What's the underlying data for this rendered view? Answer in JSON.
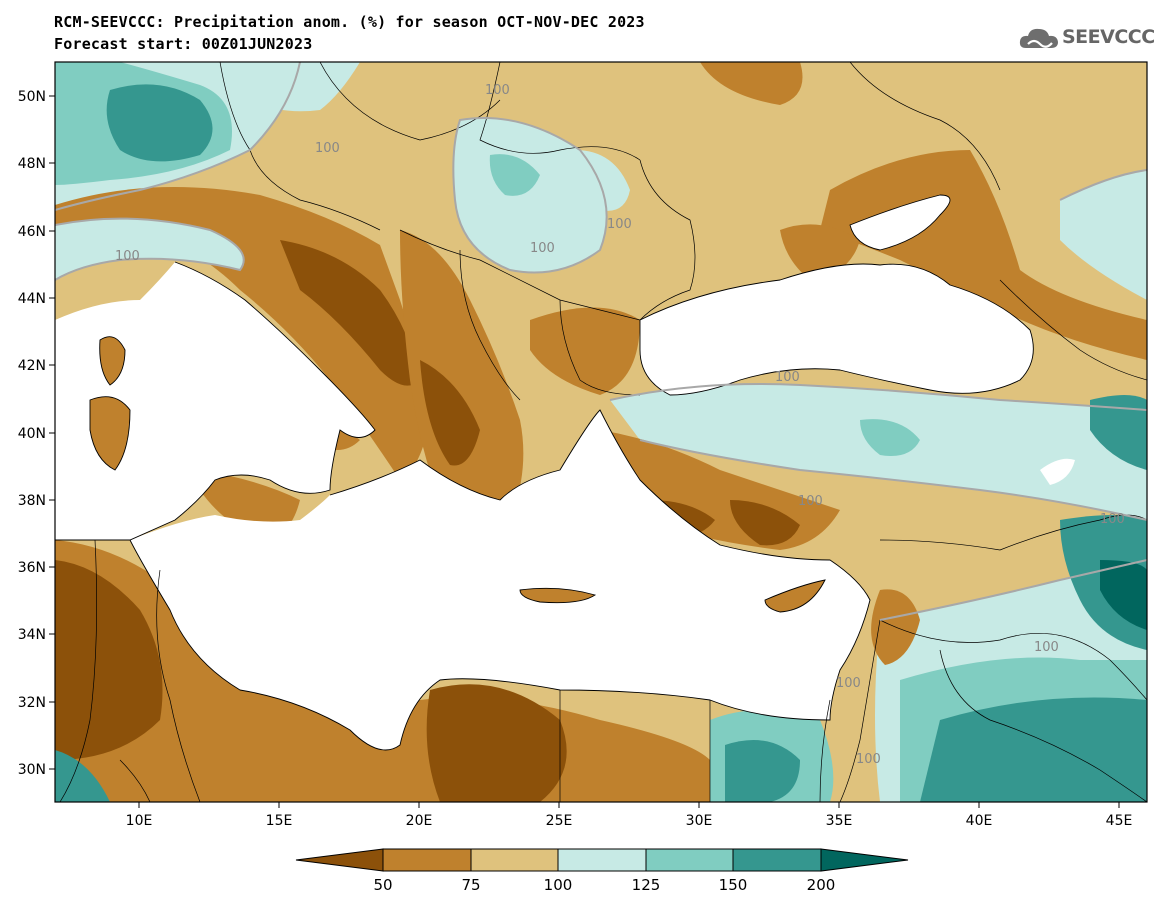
{
  "header": {
    "title_line1": "RCM-SEEVCCC: Precipitation anom. (%) for season OCT-NOV-DEC 2023",
    "title_line2": "Forecast start: 00Z01JUN2023"
  },
  "logo": {
    "text": "SEEVCCC",
    "icon": "cloud-icon"
  },
  "map": {
    "lon_range": [
      7,
      46
    ],
    "lat_range": [
      29,
      51
    ],
    "lon_ticks": [
      "10E",
      "15E",
      "20E",
      "25E",
      "30E",
      "35E",
      "40E",
      "45E"
    ],
    "lat_ticks": [
      "50N",
      "48N",
      "46N",
      "44N",
      "42N",
      "40N",
      "38N",
      "36N",
      "34N",
      "32N",
      "30N"
    ],
    "contour_labels": [
      "100",
      "100",
      "100",
      "100",
      "100",
      "100",
      "100",
      "100",
      "100",
      "100",
      "100"
    ]
  },
  "colorbar": {
    "colors": [
      "#8c510a",
      "#bf812d",
      "#dfc27d",
      "#c7eae5",
      "#80cdc1",
      "#35978f",
      "#01665e"
    ],
    "labels": [
      "50",
      "75",
      "100",
      "125",
      "150",
      "200"
    ]
  }
}
